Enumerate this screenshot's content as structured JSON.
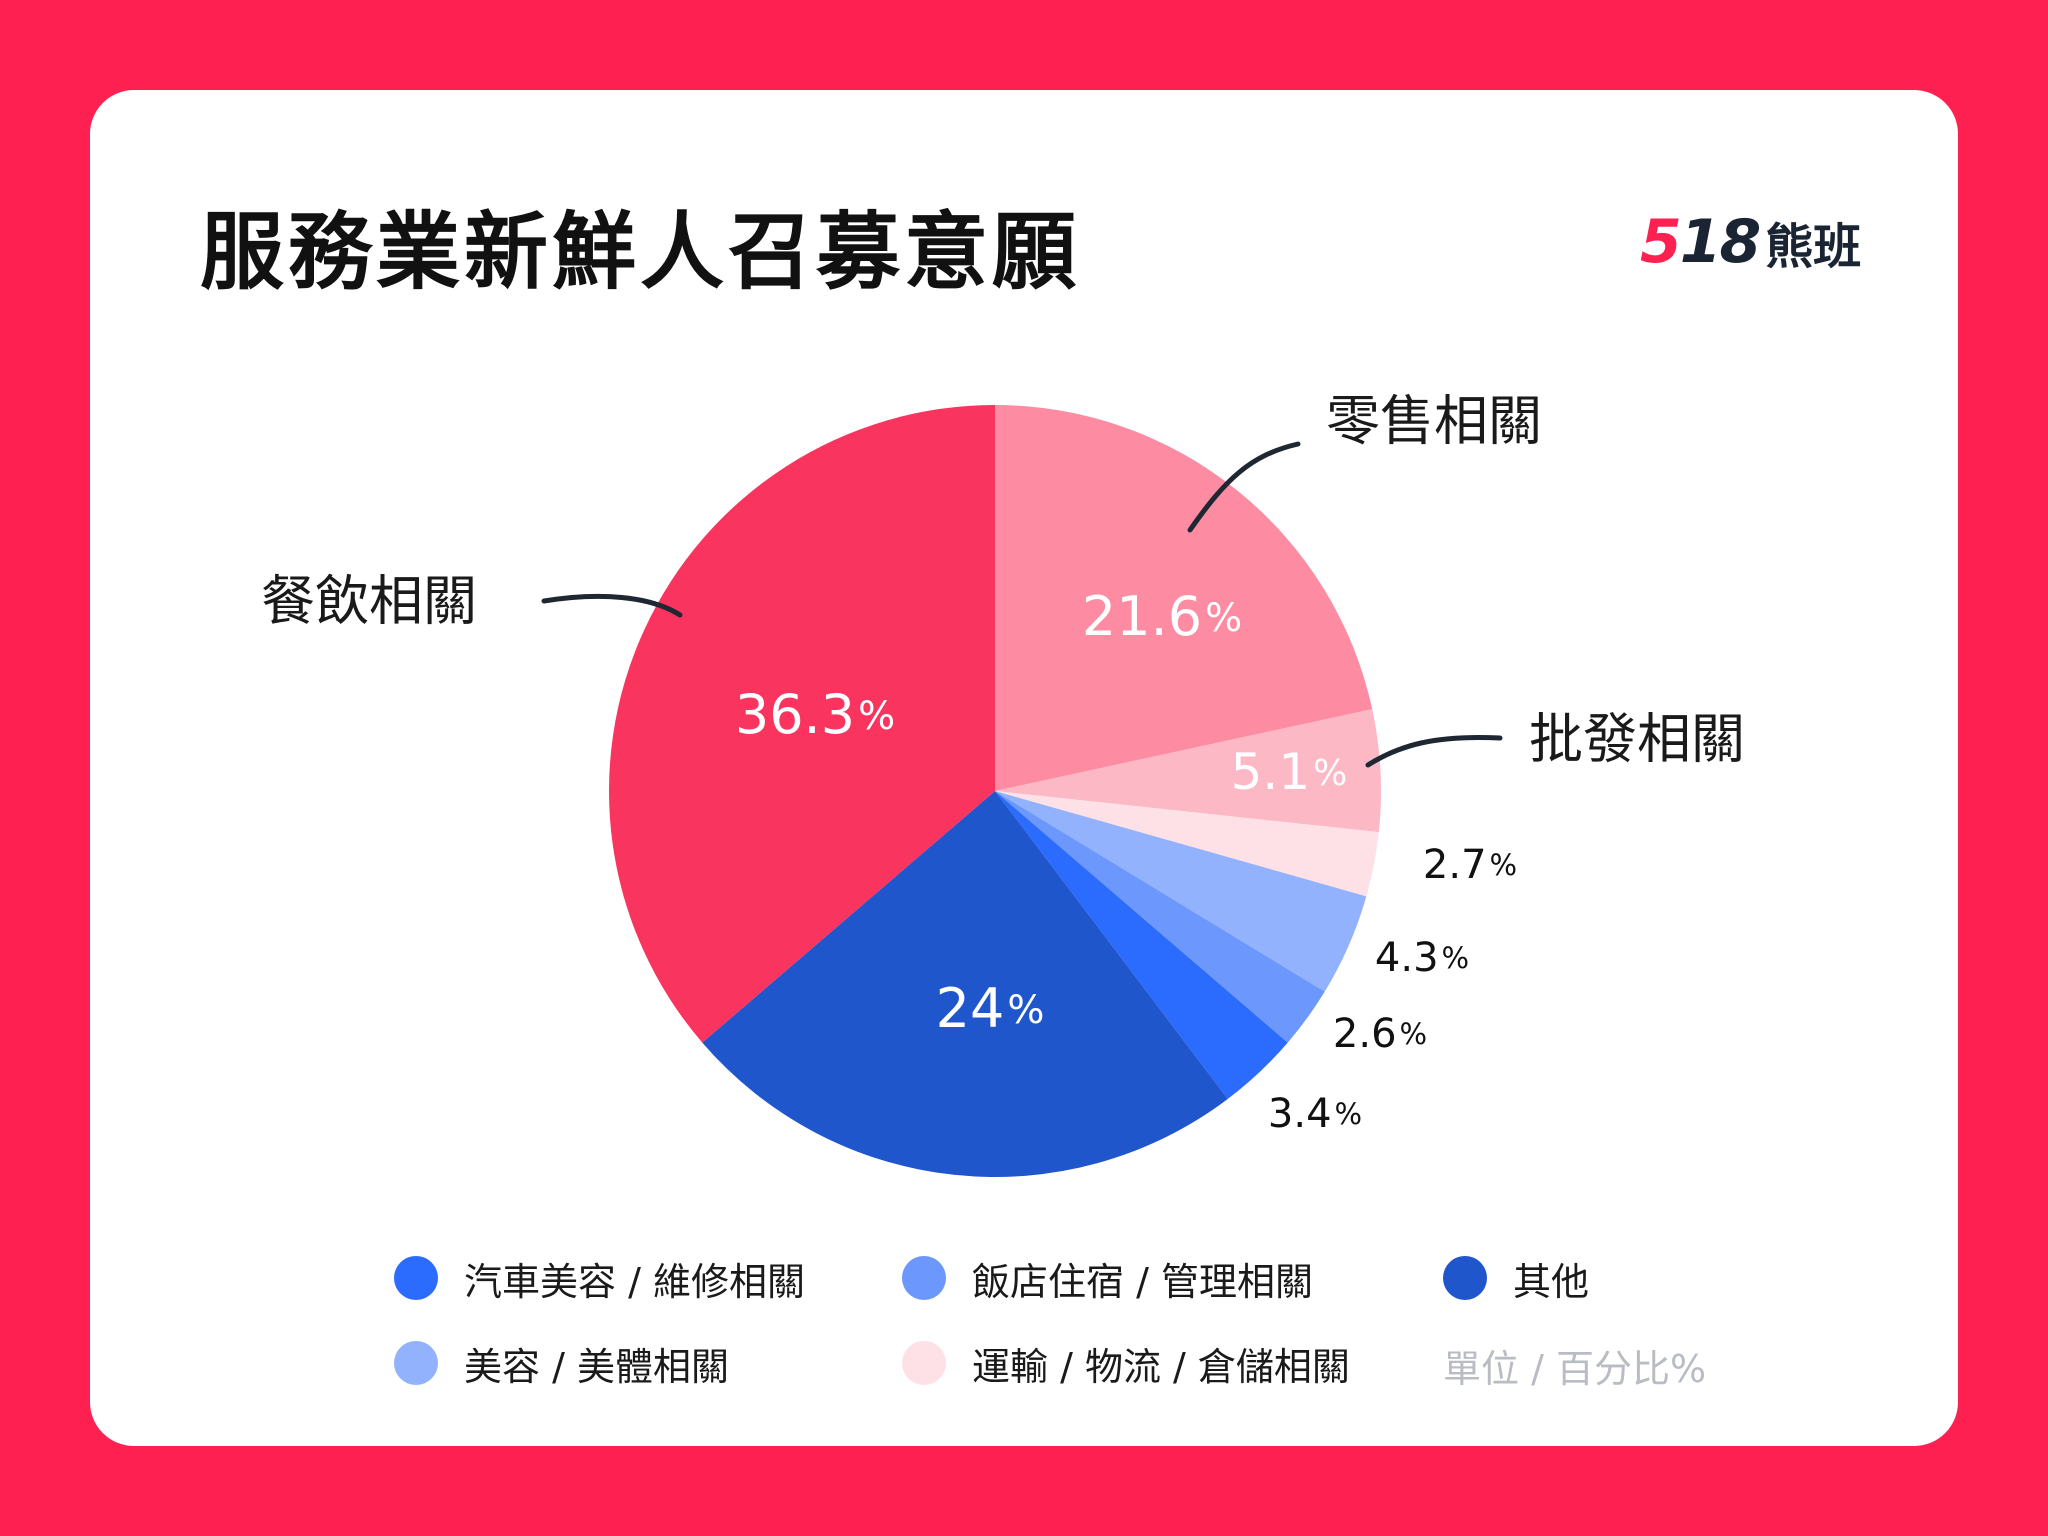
{
  "title": "服務業新鮮人召募意願",
  "logo": {
    "number": "518",
    "name": "熊班"
  },
  "unit_note": "單位 / 百分比%",
  "chart_data": {
    "type": "pie",
    "title": "服務業新鮮人召募意願",
    "unit": "%",
    "start_angle_deg": 0,
    "direction": "clockwise",
    "slices": [
      {
        "label": "零售相關",
        "value": 21.6,
        "color": "#fd8ca2",
        "show_label": true
      },
      {
        "label": "批發相關",
        "value": 5.1,
        "color": "#fdb8c5",
        "show_label": true
      },
      {
        "label": "運輸 / 物流 / 倉儲相關",
        "value": 2.7,
        "color": "#fde1e6",
        "show_label": false
      },
      {
        "label": "美容 / 美體相關",
        "value": 4.3,
        "color": "#92b2fd",
        "show_label": false
      },
      {
        "label": "飯店住宿 / 管理相關",
        "value": 2.6,
        "color": "#6c98fd",
        "show_label": false
      },
      {
        "label": "汽車美容 / 維修相關",
        "value": 3.4,
        "color": "#2b6bfd",
        "show_label": false
      },
      {
        "label": "其他",
        "value": 24,
        "color": "#1f56cc",
        "show_label": false
      },
      {
        "label": "餐飲相關",
        "value": 36.3,
        "color": "#f9345e",
        "show_label": true
      }
    ]
  },
  "legend": [
    {
      "label": "汽車美容 / 維修相關",
      "color": "#2b6bfd"
    },
    {
      "label": "飯店住宿 / 管理相關",
      "color": "#6c98fd"
    },
    {
      "label": "其他",
      "color": "#1f56cc"
    },
    {
      "label": "美容 / 美體相關",
      "color": "#92b2fd"
    },
    {
      "label": "運輸 / 物流 / 倉儲相關",
      "color": "#fde1e6"
    }
  ]
}
